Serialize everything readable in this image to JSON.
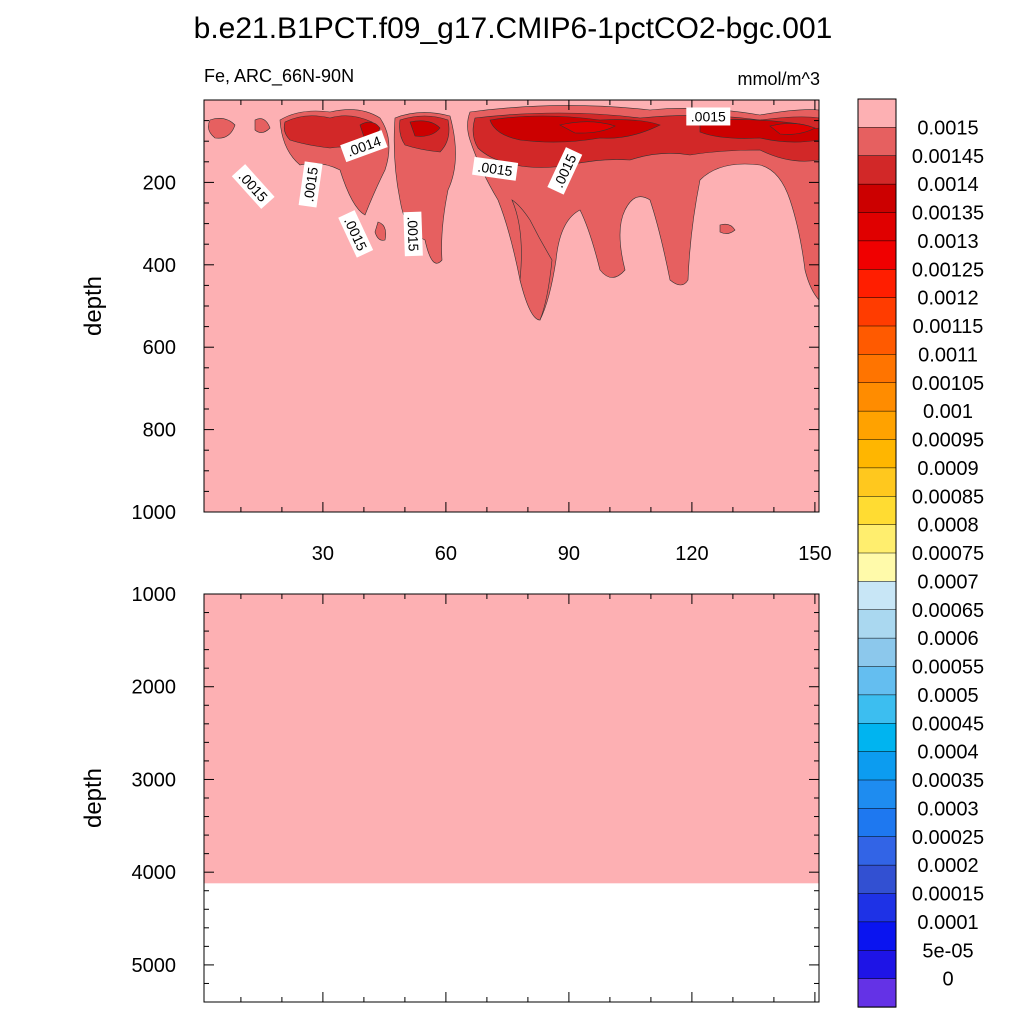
{
  "chart_data": {
    "type": "heatmap",
    "title": "b.e21.B1PCT.f09_g17.CMIP6-1pctCO2-bgc.001",
    "variable_label": "Fe, ARC_66N-90N",
    "units_label": "mmol/m^3",
    "ylabel": "depth",
    "xlim": [
      1,
      151
    ],
    "x_ticks": [
      "30",
      "60",
      "90",
      "120",
      "150"
    ],
    "x_tick_values": [
      30,
      60,
      90,
      120,
      150
    ],
    "upper_panel": {
      "ylim": [
        0,
        1000
      ],
      "y_ticks": [
        "200",
        "400",
        "600",
        "800",
        "1000"
      ],
      "y_tick_values": [
        200,
        400,
        600,
        800,
        1000
      ],
      "background_level": "0.0015",
      "contour_labels": [
        {
          "text": ".0015",
          "x": 13,
          "depth": 210,
          "angle": 48
        },
        {
          "text": ".0015",
          "x": 27,
          "depth": 205,
          "angle": -82
        },
        {
          "text": ".0015",
          "x": 38,
          "depth": 325,
          "angle": 65
        },
        {
          "text": ".0015",
          "x": 52,
          "depth": 325,
          "angle": 88
        },
        {
          "text": ".0014",
          "x": 40,
          "depth": 112,
          "angle": -20
        },
        {
          "text": ".0015",
          "x": 72,
          "depth": 167,
          "angle": 8
        },
        {
          "text": ".0015",
          "x": 89,
          "depth": 172,
          "angle": -65
        },
        {
          "text": ".0015",
          "x": 124,
          "depth": 40,
          "angle": 0
        }
      ]
    },
    "lower_panel": {
      "ylim": [
        1000,
        5400
      ],
      "y_ticks": [
        "1000",
        "2000",
        "3000",
        "4000",
        "5000"
      ],
      "y_tick_values": [
        1000,
        2000,
        3000,
        4000,
        5000
      ],
      "filled_to_depth": 4120,
      "value_above_floor": "> 0.0015"
    },
    "colorbar": {
      "labels": [
        "0.0015",
        "0.00145",
        "0.0014",
        "0.00135",
        "0.0013",
        "0.00125",
        "0.0012",
        "0.00115",
        "0.0011",
        "0.00105",
        "0.001",
        "0.00095",
        "0.0009",
        "0.00085",
        "0.0008",
        "0.00075",
        "0.0007",
        "0.00065",
        "0.0006",
        "0.00055",
        "0.0005",
        "0.00045",
        "0.0004",
        "0.00035",
        "0.0003",
        "0.00025",
        "0.0002",
        "0.00015",
        "0.0001",
        "5e-05",
        "0"
      ],
      "colors": [
        "#FDB0B3",
        "#E66060",
        "#D22828",
        "#CC0000",
        "#E00000",
        "#F00000",
        "#FF1E00",
        "#FF3C00",
        "#FF5A00",
        "#FF7400",
        "#FF8C00",
        "#FFA200",
        "#FFB600",
        "#FFC81E",
        "#FFDC32",
        "#FFEE6E",
        "#FFFAAA",
        "#C8E6F6",
        "#AAD8F0",
        "#8CC8EC",
        "#64BEF0",
        "#3CBEF0",
        "#00B4F0",
        "#0C9CF0",
        "#1E8CF0",
        "#1E78F0",
        "#3264E6",
        "#3250D2",
        "#1E32E6",
        "#0A14F0",
        "#1E14E6",
        "#6432E6"
      ]
    }
  }
}
